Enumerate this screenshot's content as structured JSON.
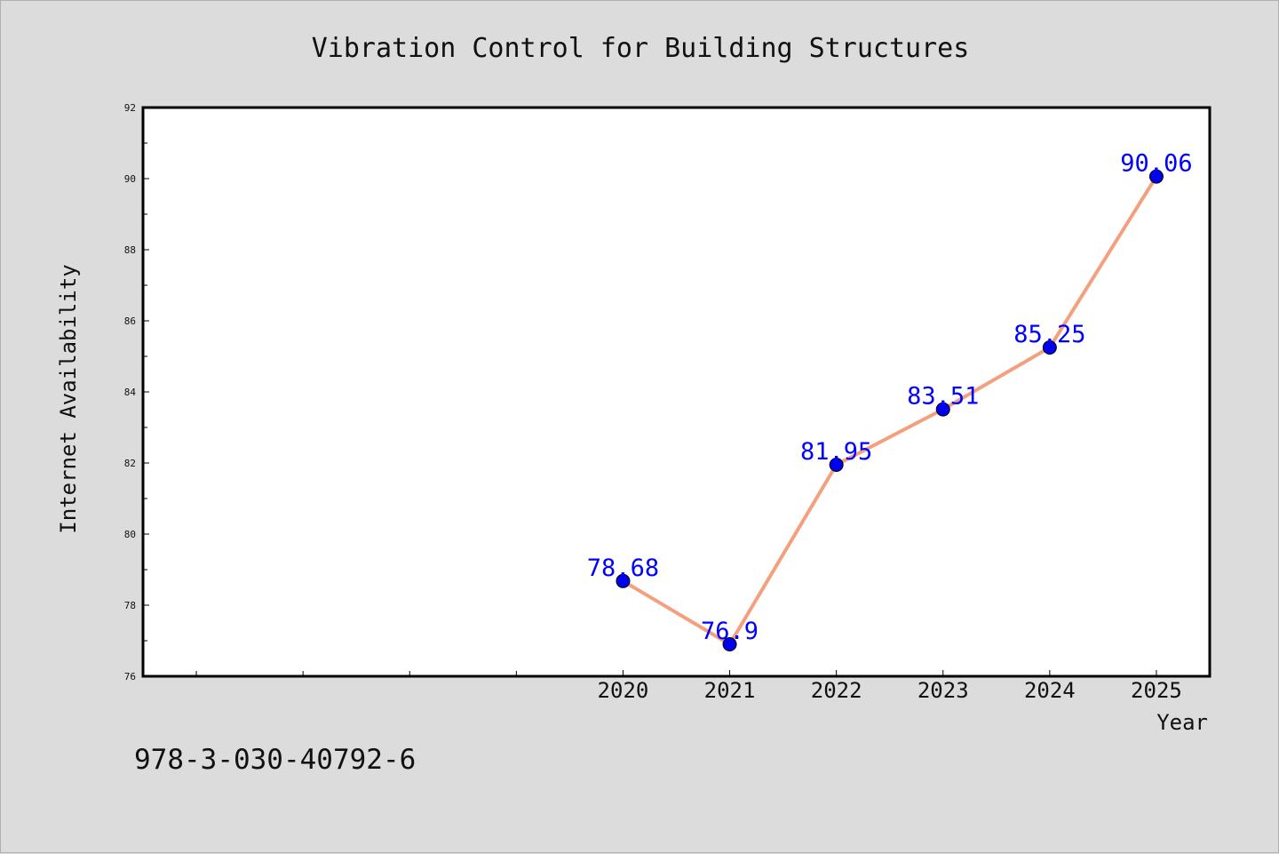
{
  "chart_data": {
    "type": "line",
    "title": "Vibration Control for Building Structures",
    "xlabel": "Year",
    "ylabel": "Internet Availability",
    "x": [
      2020,
      2021,
      2022,
      2023,
      2024,
      2025
    ],
    "series": [
      {
        "values": [
          78.68,
          76.9,
          81.95,
          83.51,
          85.25,
          90.06
        ]
      }
    ],
    "data_labels": [
      "78.68",
      "76.9",
      "81.95",
      "83.51",
      "85.25",
      "90.06"
    ],
    "xlim": [
      2015.5,
      2025.5
    ],
    "ylim": [
      76,
      92
    ],
    "yticks": [
      "76",
      "78",
      "80",
      "82",
      "84",
      "86",
      "88",
      "90",
      "92"
    ],
    "xticks_labeled": [
      "2020",
      "2021",
      "2022",
      "2023",
      "2024",
      "2025"
    ],
    "xticks_unlabeled": [
      2016,
      2017,
      2018,
      2019
    ],
    "grid": false,
    "colors": {
      "line": "#f4a07e",
      "marker": "#0000ee",
      "data_label": "#0000ff",
      "figure_background": "#dcdcdc",
      "plot_background": "#ffffff"
    }
  },
  "footer": {
    "isbn": "978-3-030-40792-6"
  }
}
